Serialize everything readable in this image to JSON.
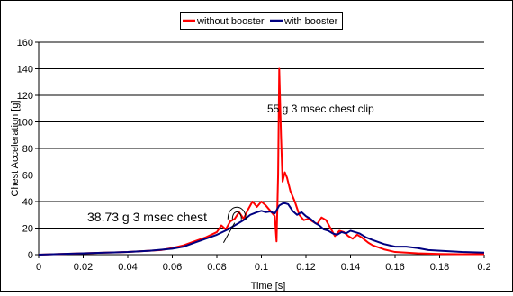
{
  "chart_data": {
    "type": "line",
    "xlabel": "Time [s]",
    "ylabel": "Chest Acceleration [g]",
    "xlim": [
      0,
      0.2
    ],
    "ylim": [
      0,
      160
    ],
    "x_ticks": [
      "0",
      "0.02",
      "0.04",
      "0.06",
      "0.08",
      "0.1",
      "0.12",
      "0.14",
      "0.16",
      "0.18",
      "0.2"
    ],
    "y_ticks": [
      "0",
      "20",
      "40",
      "60",
      "80",
      "100",
      "120",
      "140",
      "160"
    ],
    "grid": "horizontal",
    "legend_position": "top",
    "series": [
      {
        "name": "without booster",
        "color": "#ff0000",
        "points": [
          [
            0,
            0
          ],
          [
            0.01,
            0.5
          ],
          [
            0.02,
            1
          ],
          [
            0.03,
            1.5
          ],
          [
            0.04,
            2
          ],
          [
            0.05,
            3
          ],
          [
            0.055,
            3.5
          ],
          [
            0.06,
            5
          ],
          [
            0.065,
            7
          ],
          [
            0.07,
            10
          ],
          [
            0.075,
            13
          ],
          [
            0.08,
            17
          ],
          [
            0.082,
            22
          ],
          [
            0.084,
            19
          ],
          [
            0.086,
            25
          ],
          [
            0.088,
            27
          ],
          [
            0.09,
            32
          ],
          [
            0.092,
            27
          ],
          [
            0.094,
            34
          ],
          [
            0.096,
            40
          ],
          [
            0.098,
            36
          ],
          [
            0.1,
            40
          ],
          [
            0.102,
            37
          ],
          [
            0.104,
            33
          ],
          [
            0.106,
            29
          ],
          [
            0.1068,
            10
          ],
          [
            0.1075,
            60
          ],
          [
            0.108,
            140
          ],
          [
            0.1088,
            90
          ],
          [
            0.1095,
            55
          ],
          [
            0.1105,
            62
          ],
          [
            0.1115,
            58
          ],
          [
            0.113,
            48
          ],
          [
            0.115,
            40
          ],
          [
            0.117,
            30
          ],
          [
            0.119,
            26
          ],
          [
            0.121,
            27
          ],
          [
            0.123,
            25
          ],
          [
            0.125,
            23
          ],
          [
            0.127,
            28
          ],
          [
            0.129,
            26
          ],
          [
            0.131,
            20
          ],
          [
            0.133,
            14
          ],
          [
            0.135,
            18
          ],
          [
            0.137,
            17
          ],
          [
            0.139,
            14
          ],
          [
            0.141,
            12
          ],
          [
            0.143,
            15
          ],
          [
            0.145,
            13
          ],
          [
            0.148,
            9
          ],
          [
            0.15,
            7
          ],
          [
            0.155,
            4
          ],
          [
            0.16,
            2
          ],
          [
            0.17,
            1
          ],
          [
            0.18,
            0.5
          ],
          [
            0.19,
            0.3
          ],
          [
            0.2,
            0.3
          ]
        ]
      },
      {
        "name": "with booster",
        "color": "#000080",
        "points": [
          [
            0,
            0
          ],
          [
            0.01,
            0.5
          ],
          [
            0.02,
            1
          ],
          [
            0.03,
            1.5
          ],
          [
            0.04,
            2
          ],
          [
            0.05,
            3
          ],
          [
            0.06,
            4.5
          ],
          [
            0.065,
            6
          ],
          [
            0.07,
            9
          ],
          [
            0.075,
            12
          ],
          [
            0.08,
            15
          ],
          [
            0.085,
            19
          ],
          [
            0.09,
            24
          ],
          [
            0.092,
            26
          ],
          [
            0.095,
            30
          ],
          [
            0.098,
            32
          ],
          [
            0.1,
            33
          ],
          [
            0.102,
            32
          ],
          [
            0.104,
            32.5
          ],
          [
            0.106,
            31
          ],
          [
            0.108,
            37
          ],
          [
            0.11,
            39
          ],
          [
            0.112,
            38
          ],
          [
            0.114,
            33
          ],
          [
            0.116,
            30
          ],
          [
            0.118,
            32
          ],
          [
            0.12,
            29
          ],
          [
            0.122,
            27
          ],
          [
            0.124,
            24
          ],
          [
            0.126,
            22
          ],
          [
            0.128,
            19
          ],
          [
            0.13,
            18
          ],
          [
            0.132,
            16
          ],
          [
            0.134,
            15
          ],
          [
            0.136,
            17
          ],
          [
            0.138,
            16
          ],
          [
            0.14,
            18
          ],
          [
            0.142,
            17
          ],
          [
            0.144,
            16
          ],
          [
            0.147,
            13
          ],
          [
            0.15,
            11
          ],
          [
            0.155,
            8
          ],
          [
            0.16,
            6
          ],
          [
            0.165,
            6
          ],
          [
            0.17,
            5
          ],
          [
            0.175,
            3.5
          ],
          [
            0.18,
            3
          ],
          [
            0.19,
            2
          ],
          [
            0.2,
            1.5
          ]
        ]
      }
    ],
    "annotations": [
      {
        "text": "55 g  3 msec chest clip"
      },
      {
        "text": "38.73 g  3 msec chest"
      }
    ]
  }
}
